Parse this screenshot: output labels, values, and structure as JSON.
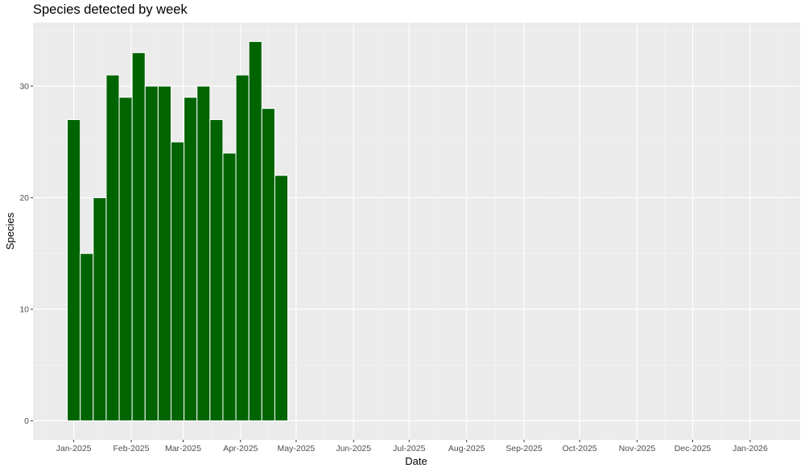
{
  "chart_data": {
    "type": "bar",
    "title": "Species detected by week",
    "xlabel": "Date",
    "ylabel": "Species",
    "x_tick_labels": [
      "Jan-2025",
      "Feb-2025",
      "Mar-2025",
      "Apr-2025",
      "May-2025",
      "Jun-2025",
      "Jul-2025",
      "Aug-2025",
      "Sep-2025",
      "Oct-2025",
      "Nov-2025",
      "Dec-2025",
      "Jan-2026"
    ],
    "y_ticks": [
      0,
      10,
      20,
      30
    ],
    "x_range": [
      "2024-12-10",
      "2026-01-28"
    ],
    "ylim": [
      -1.7,
      35.7
    ],
    "grid": true,
    "bar_color": "#006400",
    "weeks": [
      "2025-01-01",
      "2025-01-08",
      "2025-01-15",
      "2025-01-22",
      "2025-01-29",
      "2025-02-05",
      "2025-02-12",
      "2025-02-19",
      "2025-02-26",
      "2025-03-05",
      "2025-03-12",
      "2025-03-19",
      "2025-03-26",
      "2025-04-02",
      "2025-04-09",
      "2025-04-16",
      "2025-04-23"
    ],
    "values": [
      27,
      15,
      20,
      31,
      29,
      33,
      30,
      30,
      25,
      29,
      30,
      27,
      24,
      31,
      34,
      28,
      22
    ]
  }
}
